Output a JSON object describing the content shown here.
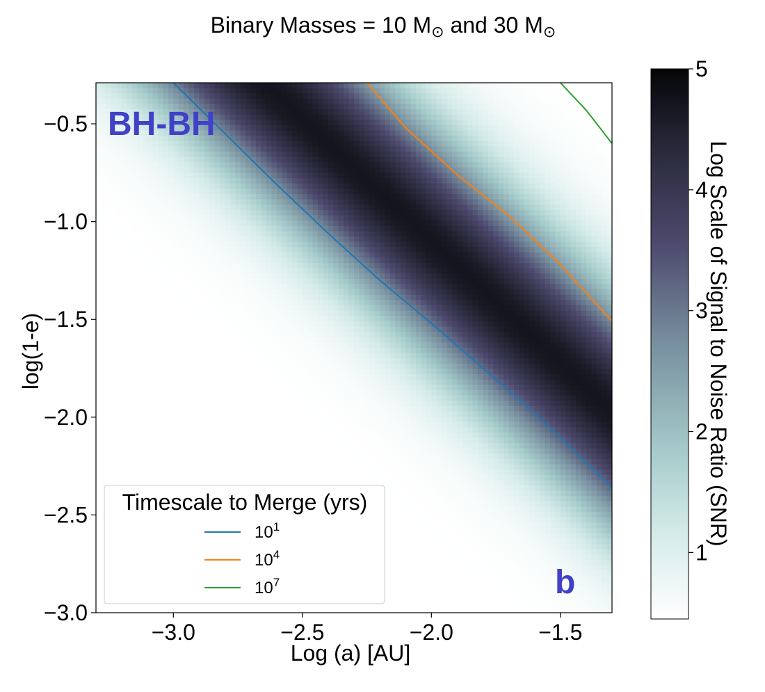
{
  "chart_data": {
    "type": "heatmap",
    "title": "Binary Masses = 10 M",
    "title_mid": " and 30 M",
    "title_joiner": "and",
    "title_sun_symbol": "⊙",
    "xlabel": "Log (a) [AU]",
    "ylabel": "log(1-e)",
    "xlim": [
      -3.3,
      -1.3
    ],
    "ylim": [
      -3.0,
      -0.29
    ],
    "xticks": [
      {
        "value": -3.0,
        "label": "−3.0"
      },
      {
        "value": -2.5,
        "label": "−2.5"
      },
      {
        "value": -2.0,
        "label": "−2.0"
      },
      {
        "value": -1.5,
        "label": "−1.5"
      }
    ],
    "yticks": [
      {
        "value": -0.5,
        "label": "−0.5"
      },
      {
        "value": -1.0,
        "label": "−1.0"
      },
      {
        "value": -1.5,
        "label": "−1.5"
      },
      {
        "value": -2.0,
        "label": "−2.0"
      },
      {
        "value": -2.5,
        "label": "−2.5"
      },
      {
        "value": -3.0,
        "label": "−3.0"
      }
    ],
    "colorbar": {
      "label": "Log Scale of Signal to Noise Ratio (SNR)",
      "range": [
        0.45,
        5.0
      ],
      "ticks": [
        {
          "value": 1,
          "label": "1"
        },
        {
          "value": 2,
          "label": "2"
        },
        {
          "value": 3,
          "label": "3"
        },
        {
          "value": 4,
          "label": "4"
        },
        {
          "value": 5,
          "label": "5"
        }
      ]
    },
    "heatmap_model": {
      "peak_snr": 4.7,
      "ridge_slope": -1.25,
      "ridge_intercept": -3.6,
      "width": 0.42,
      "edge_snr": 0.45,
      "nx": 100,
      "ny": 100
    },
    "annotations": [
      {
        "text": "BH-BH",
        "color": "#4040c8"
      },
      {
        "text": "b",
        "color": "#4040c8"
      }
    ],
    "legend": {
      "title": "Timescale to Merge (yrs)",
      "location": "lower-left",
      "entries": [
        {
          "base": "10",
          "exp": "1",
          "color": "#1f77b4"
        },
        {
          "base": "10",
          "exp": "4",
          "color": "#ff7f0e"
        },
        {
          "base": "10",
          "exp": "7",
          "color": "#2ca02c"
        }
      ]
    },
    "series": [
      {
        "name": "10^1",
        "color": "#1f77b4",
        "x": [
          -3.0,
          -2.8,
          -2.6,
          -2.4,
          -2.2,
          -2.0,
          -1.8,
          -1.6,
          -1.3
        ],
        "y": [
          -0.29,
          -0.55,
          -0.81,
          -1.06,
          -1.3,
          -1.52,
          -1.75,
          -1.98,
          -2.36
        ]
      },
      {
        "name": "10^4",
        "color": "#ff7f0e",
        "x": [
          -2.25,
          -2.1,
          -1.9,
          -1.7,
          -1.5,
          -1.3
        ],
        "y": [
          -0.29,
          -0.52,
          -0.76,
          -0.97,
          -1.22,
          -1.51
        ]
      },
      {
        "name": "10^7",
        "color": "#2ca02c",
        "x": [
          -1.5,
          -1.4,
          -1.3
        ],
        "y": [
          -0.29,
          -0.43,
          -0.6
        ]
      }
    ]
  }
}
